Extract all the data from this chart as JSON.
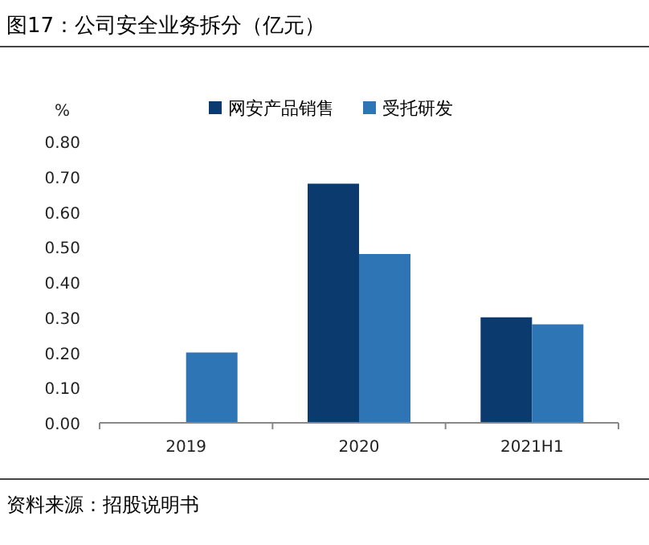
{
  "chart_data": {
    "type": "bar",
    "title": "图17：公司安全业务拆分（亿元）",
    "ylabel": "%",
    "categories": [
      "2019",
      "2020",
      "2021H1"
    ],
    "series": [
      {
        "name": "网安产品销售",
        "color": "#0b3a6e",
        "values": [
          null,
          0.68,
          0.3
        ]
      },
      {
        "name": "受托研发",
        "color": "#2e75b6",
        "values": [
          0.2,
          0.48,
          0.28
        ]
      }
    ],
    "ylim": [
      0,
      0.8
    ],
    "yticks": [
      {
        "value": 0,
        "label": "0.00"
      },
      {
        "value": 0.1,
        "label": "0.10"
      },
      {
        "value": 0.2,
        "label": "0.20"
      },
      {
        "value": 0.3,
        "label": "0.30"
      },
      {
        "value": 0.4,
        "label": "0.40"
      },
      {
        "value": 0.5,
        "label": "0.50"
      },
      {
        "value": 0.6,
        "label": "0.60"
      },
      {
        "value": 0.7,
        "label": "0.70"
      },
      {
        "value": 0.8,
        "label": "0.80"
      }
    ],
    "legend": "top",
    "annotations": [
      "资料来源：招股说明书"
    ]
  }
}
